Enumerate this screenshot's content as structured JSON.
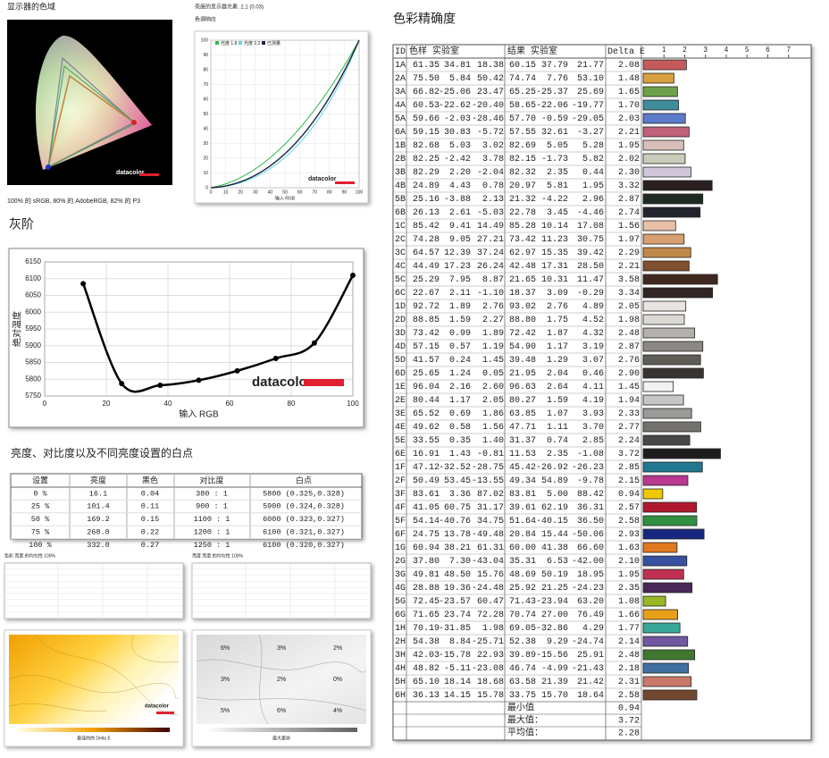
{
  "gamut": {
    "title": "显示器的色域",
    "caption": "100% 的 sRGB, 80% 的 AdobeRGB, 82% 的 P3"
  },
  "brand": "datacolor",
  "tone_response": {
    "title": "亮度的显示器光素: 2.1 (0.03)",
    "label": "色调响应",
    "xlabel": "输入 RGB",
    "legend": [
      {
        "name": "光度 1.8",
        "color": "#2db84a"
      },
      {
        "name": "光度 2.2",
        "color": "#5fd6e8"
      },
      {
        "name": "已测量",
        "color": "#1a2340"
      }
    ],
    "ticks": [
      0,
      10,
      20,
      30,
      40,
      50,
      60,
      70,
      80,
      90,
      100
    ]
  },
  "chart_data": {
    "type": "line",
    "title": "灰阶",
    "xlabel": "输入 RGB",
    "ylabel": "绝对温度",
    "color": "#000000",
    "x": [
      12.5,
      25,
      37.5,
      50,
      62.5,
      75,
      87.5,
      100
    ],
    "values": [
      6085,
      5787,
      5782,
      5797,
      5825,
      5862,
      5908,
      6110
    ],
    "xlim": [
      0,
      100
    ],
    "ylim": [
      5750,
      6150
    ],
    "xticks": [
      0,
      20,
      40,
      60,
      80,
      100
    ],
    "yticks": [
      5750,
      5800,
      5850,
      5900,
      5950,
      6000,
      6050,
      6100,
      6150
    ],
    "grid": true
  },
  "whitepoint": {
    "title": "亮度、对比度以及不同亮度设置的白点",
    "headers": [
      "设置",
      "亮度",
      "黑色",
      "对比度",
      "白点"
    ],
    "rows": [
      [
        "0 %",
        "16.1",
        "0.04",
        "380 : 1",
        "5800 (0.325,0.328)"
      ],
      [
        "25 %",
        "101.4",
        "0.11",
        "900 : 1",
        "5900 (0.324,0.328)"
      ],
      [
        "50 %",
        "169.2",
        "0.15",
        "1100 : 1",
        "6000 (0.323,0.327)"
      ],
      [
        "75 %",
        "268.0",
        "0.22",
        "1200 : 1",
        "6100 (0.321,0.327)"
      ],
      [
        "100 %",
        "332.0",
        "0.27",
        "1250 : 1",
        "6100 (0.320,0.327)"
      ]
    ]
  },
  "uniformity": {
    "color": {
      "title": "色彩 亮度 的均匀性 100%",
      "caption": "最佳的的 Delta E"
    },
    "luminance": {
      "title": "亮度 亮度 的均匀性 100%",
      "caption": "最大差异",
      "cells": [
        "6%",
        "3%",
        "2%",
        "3%",
        "2%",
        "0%",
        "5%",
        "6%",
        "4%"
      ]
    }
  },
  "color_accuracy": {
    "title": "色彩精确度",
    "headers": [
      "ID",
      "色样 实验室",
      "结果 实验室",
      "Delta E"
    ],
    "rows": [
      [
        "1A",
        "61.35",
        "34.81",
        "18.38",
        "60.15",
        "37.79",
        "21.77"
      ],
      [
        "2A",
        "75.50",
        "5.84",
        "50.42",
        "74.74",
        "7.76",
        "53.10"
      ],
      [
        "3A",
        "66.82",
        "-25.06",
        "23.47",
        "65.25",
        "-25.37",
        "25.69"
      ],
      [
        "4A",
        "60.53",
        "-22.62",
        "-20.40",
        "58.65",
        "-22.06",
        "-19.77"
      ],
      [
        "5A",
        "59.66",
        "-2.03",
        "-28.46",
        "57.70",
        "-0.59",
        "-29.05"
      ],
      [
        "6A",
        "59.15",
        "30.83",
        "-5.72",
        "57.55",
        "32.61",
        "-3.27"
      ],
      [
        "1B",
        "82.68",
        "5.03",
        "3.02",
        "82.69",
        "5.05",
        "5.28"
      ],
      [
        "2B",
        "82.25",
        "-2.42",
        "3.78",
        "82.15",
        "-1.73",
        "5.82"
      ],
      [
        "3B",
        "82.29",
        "2.20",
        "-2.04",
        "82.32",
        "2.35",
        "0.44"
      ],
      [
        "4B",
        "24.89",
        "4.43",
        "0.78",
        "20.97",
        "5.81",
        "1.95"
      ],
      [
        "5B",
        "25.16",
        "-3.88",
        "2.13",
        "21.32",
        "-4.22",
        "2.96"
      ],
      [
        "6B",
        "26.13",
        "2.61",
        "-5.03",
        "22.78",
        "3.45",
        "-4.46"
      ],
      [
        "1C",
        "85.42",
        "9.41",
        "14.49",
        "85.28",
        "10.14",
        "17.08"
      ],
      [
        "2C",
        "74.28",
        "9.05",
        "27.21",
        "73.42",
        "11.23",
        "30.75"
      ],
      [
        "3C",
        "64.57",
        "12.39",
        "37.24",
        "62.97",
        "15.35",
        "39.42"
      ],
      [
        "4C",
        "44.49",
        "17.23",
        "26.24",
        "42.48",
        "17.31",
        "28.50"
      ],
      [
        "5C",
        "25.29",
        "7.95",
        "8.87",
        "21.65",
        "10.31",
        "11.47"
      ],
      [
        "6C",
        "22.67",
        "2.11",
        "-1.10",
        "18.37",
        "3.09",
        "-0.29"
      ],
      [
        "1D",
        "92.72",
        "1.89",
        "2.76",
        "93.02",
        "2.76",
        "4.89"
      ],
      [
        "2D",
        "88.85",
        "1.59",
        "2.27",
        "88.80",
        "1.75",
        "4.52"
      ],
      [
        "3D",
        "73.42",
        "0.99",
        "1.89",
        "72.42",
        "1.87",
        "4.32"
      ],
      [
        "4D",
        "57.15",
        "0.57",
        "1.19",
        "54.90",
        "1.17",
        "3.19"
      ],
      [
        "5D",
        "41.57",
        "0.24",
        "1.45",
        "39.48",
        "1.29",
        "3.07"
      ],
      [
        "6D",
        "25.65",
        "1.24",
        "0.05",
        "21.95",
        "2.04",
        "0.46"
      ],
      [
        "1E",
        "96.04",
        "2.16",
        "2.60",
        "96.63",
        "2.64",
        "4.11"
      ],
      [
        "2E",
        "80.44",
        "1.17",
        "2.05",
        "80.27",
        "1.59",
        "4.19"
      ],
      [
        "3E",
        "65.52",
        "0.69",
        "1.86",
        "63.85",
        "1.07",
        "3.93"
      ],
      [
        "4E",
        "49.62",
        "0.58",
        "1.56",
        "47.71",
        "1.11",
        "3.70"
      ],
      [
        "5E",
        "33.55",
        "0.35",
        "1.40",
        "31.37",
        "0.74",
        "2.85"
      ],
      [
        "6E",
        "16.91",
        "1.43",
        "-0.81",
        "11.53",
        "2.35",
        "-1.08"
      ],
      [
        "1F",
        "47.12",
        "-32.52",
        "-28.75",
        "45.42",
        "-26.92",
        "-26.23"
      ],
      [
        "2F",
        "50.49",
        "53.45",
        "-13.55",
        "49.34",
        "54.89",
        "-9.78"
      ],
      [
        "3F",
        "83.61",
        "3.36",
        "87.02",
        "83.81",
        "5.00",
        "88.42"
      ],
      [
        "4F",
        "41.05",
        "60.75",
        "31.17",
        "39.61",
        "62.19",
        "36.31"
      ],
      [
        "5F",
        "54.14",
        "-40.76",
        "34.75",
        "51.64",
        "-40.15",
        "36.50"
      ],
      [
        "6F",
        "24.75",
        "13.78",
        "-49.48",
        "20.84",
        "15.44",
        "-50.06"
      ],
      [
        "1G",
        "60.94",
        "38.21",
        "61.31",
        "60.00",
        "41.38",
        "66.60"
      ],
      [
        "2G",
        "37.80",
        "7.30",
        "-43.04",
        "35.31",
        "6.53",
        "-42.00"
      ],
      [
        "3G",
        "49.81",
        "48.50",
        "15.76",
        "48.69",
        "50.19",
        "18.95"
      ],
      [
        "4G",
        "28.88",
        "19.36",
        "-24.48",
        "25.92",
        "21.25",
        "-24.23"
      ],
      [
        "5G",
        "72.45",
        "-23.57",
        "60.47",
        "71.43",
        "-23.94",
        "63.20"
      ],
      [
        "6G",
        "71.65",
        "23.74",
        "72.28",
        "70.74",
        "27.00",
        "76.49"
      ],
      [
        "1H",
        "70.19",
        "-31.85",
        "1.98",
        "69.05",
        "-32.86",
        "4.29"
      ],
      [
        "2H",
        "54.38",
        "8.84",
        "-25.71",
        "52.38",
        "9.29",
        "-24.74"
      ],
      [
        "3H",
        "42.03",
        "-15.78",
        "22.93",
        "39.89",
        "-15.56",
        "25.91"
      ],
      [
        "4H",
        "48.82",
        "-5.11",
        "-23.08",
        "46.74",
        "-4.99",
        "-21.43"
      ],
      [
        "5H",
        "65.10",
        "18.14",
        "18.68",
        "63.58",
        "21.39",
        "21.42"
      ],
      [
        "6H",
        "36.13",
        "14.15",
        "15.78",
        "33.75",
        "15.70",
        "18.64"
      ]
    ],
    "delta_e": {
      "values": [
        2.08,
        1.48,
        1.65,
        1.7,
        2.03,
        2.21,
        1.95,
        2.02,
        2.3,
        3.32,
        2.87,
        2.74,
        1.56,
        1.97,
        2.29,
        2.21,
        3.58,
        3.34,
        2.05,
        1.98,
        2.48,
        2.87,
        2.76,
        2.9,
        1.45,
        1.94,
        2.33,
        2.77,
        2.24,
        3.72,
        2.85,
        2.15,
        0.94,
        2.57,
        2.58,
        2.93,
        1.63,
        2.1,
        1.95,
        2.35,
        1.08,
        1.66,
        1.77,
        2.14,
        2.48,
        2.18,
        2.31,
        2.58
      ],
      "value_labels": [
        "2.08",
        "1.48",
        "1.65",
        "1.70",
        "2.03",
        "2.21",
        "1.95",
        "2.02",
        "2.30",
        "3.32",
        "2.87",
        "2.74",
        "1.56",
        "1.97",
        "2.29",
        "2.21",
        "3.58",
        "3.34",
        "2.05",
        "1.98",
        "2.48",
        "2.87",
        "2.76",
        "2.90",
        "1.45",
        "1.94",
        "2.33",
        "2.77",
        "2.24",
        "3.72",
        "2.85",
        "2.15",
        "0.94",
        "2.57",
        "2.58",
        "2.93",
        "1.63",
        "2.10",
        "1.95",
        "2.35",
        "1.08",
        "1.66",
        "1.77",
        "2.14",
        "2.48",
        "2.18",
        "2.31",
        "2.58"
      ]
    },
    "colors": [
      "#c55a5a",
      "#d8a040",
      "#6ea04a",
      "#3f8c9a",
      "#5b7ac8",
      "#c0607a",
      "#d8c0b8",
      "#c8ccb8",
      "#d0c8d8",
      "#2a2020",
      "#1f2a22",
      "#24242e",
      "#e8c0a8",
      "#d8a070",
      "#c08848",
      "#805030",
      "#402820",
      "#302424",
      "#e8e4e0",
      "#dcd8d4",
      "#b4b0ac",
      "#8c8884",
      "#605c58",
      "#383432",
      "#f4f2f0",
      "#c8c6c4",
      "#9c9a98",
      "#74726f",
      "#4a4846",
      "#1e1c1c",
      "#207890",
      "#b83890",
      "#f0c800",
      "#b01830",
      "#309040",
      "#182880",
      "#e07820",
      "#3850a0",
      "#c03050",
      "#482858",
      "#98b828",
      "#e8a018",
      "#38a898",
      "#7058a0",
      "#407830",
      "#4070a0",
      "#c87868",
      "#704830"
    ],
    "xlim": [
      0,
      8
    ],
    "xticks": [
      1,
      2,
      3,
      4,
      5,
      6,
      7
    ],
    "summary": [
      {
        "label": "最小值",
        "value": "0.94"
      },
      {
        "label": "最大值：",
        "value": "3.72"
      },
      {
        "label": "平均值：",
        "value": "2.28"
      }
    ]
  }
}
